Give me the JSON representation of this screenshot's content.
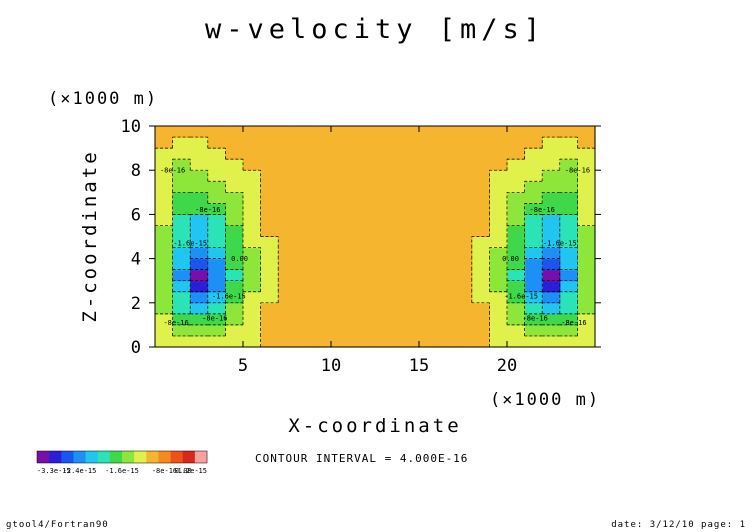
{
  "chart_data": {
    "type": "heatmap",
    "title": "w-velocity [m/s]",
    "xlabel": "X-coordinate",
    "ylabel": "Z-coordinate",
    "x_unit": "(×1000 m)",
    "y_unit": "(×1000 m)",
    "xlim": [
      0,
      25
    ],
    "ylim": [
      0,
      10
    ],
    "xticks": [
      5,
      10,
      15,
      20
    ],
    "yticks": [
      0,
      2,
      4,
      6,
      8,
      10
    ],
    "contour_interval_text": "CONTOUR INTERVAL = 4.000E-16",
    "colorbar": {
      "labels": [
        "-3.3e-15",
        "-2.4e-15",
        "-1.6e-15",
        "-8e-16",
        "0.00",
        "1.2e-15"
      ],
      "colors": [
        "#7a0ea8",
        "#2a1fd6",
        "#1b55f0",
        "#1c90f5",
        "#20c6f0",
        "#2ae3b6",
        "#3fd84a",
        "#8ee63a",
        "#dff14a",
        "#f5b52e",
        "#f58a20",
        "#f0501a",
        "#d8281c",
        "#f9a0a0"
      ]
    },
    "contour_labels": [
      "-8e-16",
      "-1.6e-15",
      "0.00"
    ],
    "cells": {
      "x": [
        0.5,
        1.5,
        2.5,
        3.5,
        4.5,
        5.5,
        6.5,
        7.5,
        8.5,
        9.5,
        10.5,
        11.5,
        12.5
      ],
      "z": [
        0.25,
        0.75,
        1.25,
        1.75,
        2.25,
        2.75,
        3.25,
        3.75,
        4.25,
        4.75,
        5.25,
        5.75,
        6.25,
        6.75,
        7.25,
        7.75,
        8.25,
        8.75,
        9.25,
        9.75
      ],
      "w_e16": [
        [
          -2,
          -4,
          -3,
          -2,
          -2,
          -1,
          0,
          1,
          1,
          1,
          1,
          1,
          1
        ],
        [
          -3,
          -7,
          -8,
          -6,
          -3,
          -1,
          0,
          1,
          1,
          1,
          1,
          2,
          1
        ],
        [
          -4,
          -10,
          -12,
          -9,
          -5,
          -2,
          0,
          1,
          1,
          1,
          2,
          1,
          1
        ],
        [
          -5,
          -13,
          -17,
          -13,
          -7,
          -3,
          0,
          1,
          1,
          2,
          1,
          1,
          1
        ],
        [
          -5,
          -16,
          -23,
          -18,
          -10,
          -4,
          -1,
          1,
          1,
          1,
          1,
          1,
          1
        ],
        [
          -6,
          -20,
          -30,
          -23,
          -12,
          -5,
          -1,
          1,
          1,
          1,
          1,
          1,
          1
        ],
        [
          -6,
          -21,
          -33,
          -24,
          -13,
          -5,
          -1,
          1,
          1,
          2,
          3,
          1,
          1
        ],
        [
          -6,
          -19,
          -27,
          -21,
          -12,
          -5,
          -1,
          1,
          1,
          2,
          2,
          1,
          1
        ],
        [
          -5,
          -17,
          -21,
          -17,
          -11,
          -5,
          -1,
          1,
          1,
          2,
          2,
          2,
          3
        ],
        [
          -5,
          -16,
          -19,
          -16,
          -10,
          -4,
          -1,
          1,
          1,
          2,
          2,
          2,
          2
        ],
        [
          -5,
          -15,
          -18,
          -15,
          -9,
          -3,
          0,
          1,
          2,
          2,
          3,
          2,
          2
        ],
        [
          -4,
          -13,
          -17,
          -13,
          -8,
          -3,
          0,
          1,
          2,
          2,
          2,
          3,
          2
        ],
        [
          -4,
          -11,
          -12,
          -10,
          -6,
          -2,
          0,
          1,
          1,
          2,
          2,
          2,
          2
        ],
        [
          -3,
          -9,
          -9,
          -8,
          -5,
          -2,
          0,
          1,
          1,
          1,
          1,
          2,
          2
        ],
        [
          -3,
          -8,
          -7,
          -6,
          -4,
          -1,
          0,
          1,
          1,
          1,
          1,
          2,
          2
        ],
        [
          -3,
          -7,
          -6,
          -4,
          -3,
          -1,
          0,
          1,
          2,
          1,
          1,
          2,
          2
        ],
        [
          -2,
          -5,
          -4,
          -3,
          -1,
          0,
          1,
          1,
          1,
          1,
          1,
          1,
          1
        ],
        [
          -1,
          -3,
          -2,
          -1,
          0,
          1,
          2,
          1,
          1,
          1,
          1,
          1,
          1
        ],
        [
          0,
          -1,
          -1,
          0,
          1,
          1,
          1,
          1,
          1,
          1,
          1,
          1,
          1
        ],
        [
          0,
          0,
          0,
          1,
          1,
          1,
          1,
          1,
          1,
          1,
          1,
          1,
          1
        ]
      ]
    }
  },
  "footer": {
    "left": "gtool4/Fortran90",
    "right": "date: 3/12/10 page: 1"
  }
}
